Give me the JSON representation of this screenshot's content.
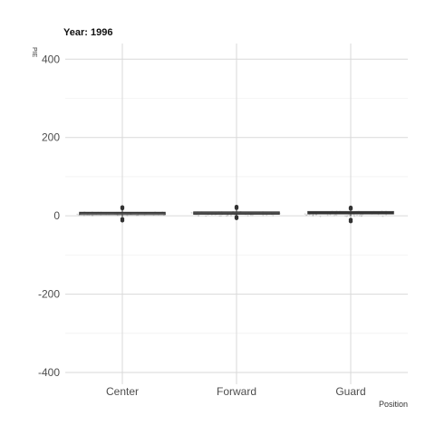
{
  "chart_data": {
    "type": "boxplot",
    "title": "Year: 1996",
    "ylabel": "PIE",
    "xlabel": "Position",
    "categories": [
      "Center",
      "Forward",
      "Guard"
    ],
    "ylim": [
      -430,
      440
    ],
    "y_ticks": [
      400,
      200,
      0,
      -200,
      -400
    ],
    "y_minor_ticks": [
      300,
      100,
      -100,
      -300
    ],
    "grid": true,
    "legend": "none",
    "boxes": [
      {
        "category": "Center",
        "whisker_low": -2,
        "q1": 5,
        "median": 7,
        "q3": 9,
        "whisker_high": 16,
        "outliers": [
          22,
          19,
          -8,
          -12
        ]
      },
      {
        "category": "Forward",
        "whisker_low": -1,
        "q1 ": 0,
        "q1": 5,
        "median": 7,
        "q3": 10,
        "whisker_high": 17,
        "outliers": [
          23,
          20,
          -3,
          -6
        ]
      },
      {
        "category": "Guard",
        "whisker_low": -1,
        "q1": 5,
        "median": 8,
        "q3": 11,
        "whisker_high": 18,
        "outliers": [
          21,
          18,
          -10,
          -14
        ]
      }
    ],
    "colors": {
      "box": "#333333",
      "grid": "#d9d9d9",
      "grid_minor": "#ebebeb",
      "points": "#999999"
    }
  }
}
